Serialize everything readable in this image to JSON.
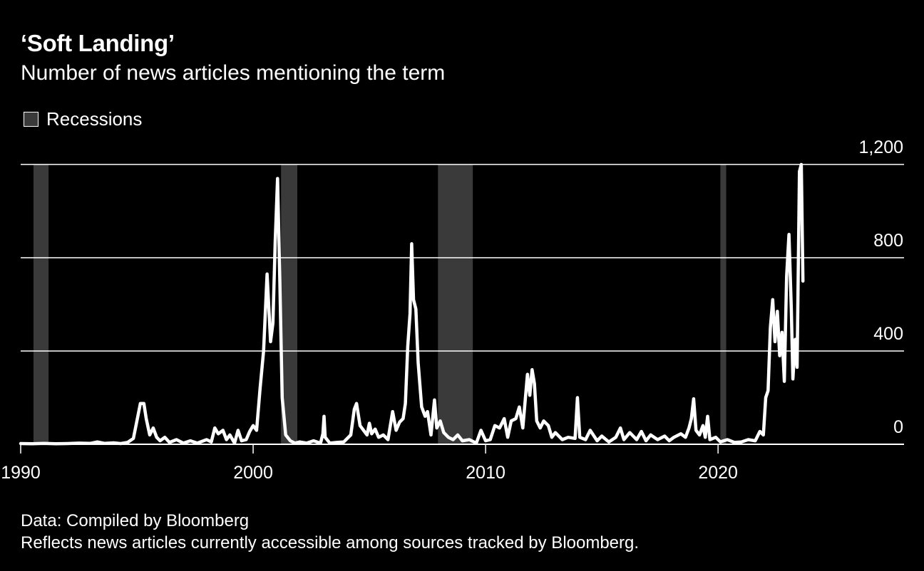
{
  "title": "‘Soft Landing’",
  "subtitle": "Number of news articles mentioning the term",
  "legend": {
    "recessions_label": "Recessions"
  },
  "footer": {
    "source": "Data: Compiled by Bloomberg",
    "note": "Reflects news articles currently accessible among sources tracked by Bloomberg."
  },
  "colors": {
    "background": "#000000",
    "line": "#ffffff",
    "recession": "#3a3a3a",
    "text": "#ffffff"
  },
  "chart_data": {
    "type": "line",
    "title": "‘Soft Landing’",
    "subtitle": "Number of news articles mentioning the term",
    "xlim": [
      1990,
      2028
    ],
    "ylim": [
      0,
      1200
    ],
    "x_ticks": [
      {
        "value": 1990,
        "label": "1990"
      },
      {
        "value": 2000,
        "label": "2000"
      },
      {
        "value": 2010,
        "label": "2010"
      },
      {
        "value": 2020,
        "label": "2020"
      }
    ],
    "y_ticks": [
      {
        "value": 0,
        "label": "0"
      },
      {
        "value": 400,
        "label": "400"
      },
      {
        "value": 800,
        "label": "800"
      },
      {
        "value": 1200,
        "label": "1,200"
      }
    ],
    "grid": true,
    "y_axis_position": "right",
    "legend_position": "top-left",
    "recessions": [
      {
        "start": 1990.55,
        "end": 1991.2
      },
      {
        "start": 2001.2,
        "end": 2001.9
      },
      {
        "start": 2007.95,
        "end": 2009.45
      },
      {
        "start": 2020.1,
        "end": 2020.35
      }
    ],
    "series": [
      {
        "values": [
          [
            1990.0,
            3
          ],
          [
            1990.5,
            2
          ],
          [
            1991.0,
            4
          ],
          [
            1991.5,
            2
          ],
          [
            1992.0,
            3
          ],
          [
            1992.5,
            5
          ],
          [
            1993.0,
            4
          ],
          [
            1993.3,
            10
          ],
          [
            1993.6,
            4
          ],
          [
            1994.0,
            6
          ],
          [
            1994.3,
            3
          ],
          [
            1994.6,
            8
          ],
          [
            1994.85,
            25
          ],
          [
            1995.0,
            100
          ],
          [
            1995.15,
            175
          ],
          [
            1995.3,
            175
          ],
          [
            1995.4,
            110
          ],
          [
            1995.55,
            40
          ],
          [
            1995.7,
            70
          ],
          [
            1995.85,
            30
          ],
          [
            1996.0,
            15
          ],
          [
            1996.2,
            30
          ],
          [
            1996.4,
            8
          ],
          [
            1996.7,
            20
          ],
          [
            1997.0,
            5
          ],
          [
            1997.3,
            15
          ],
          [
            1997.6,
            5
          ],
          [
            1998.0,
            20
          ],
          [
            1998.2,
            10
          ],
          [
            1998.35,
            70
          ],
          [
            1998.5,
            45
          ],
          [
            1998.7,
            60
          ],
          [
            1998.85,
            20
          ],
          [
            1999.0,
            40
          ],
          [
            1999.2,
            5
          ],
          [
            1999.35,
            60
          ],
          [
            1999.5,
            15
          ],
          [
            1999.7,
            20
          ],
          [
            1999.85,
            55
          ],
          [
            2000.0,
            80
          ],
          [
            2000.15,
            60
          ],
          [
            2000.3,
            240
          ],
          [
            2000.45,
            400
          ],
          [
            2000.6,
            730
          ],
          [
            2000.75,
            440
          ],
          [
            2000.85,
            520
          ],
          [
            2000.95,
            870
          ],
          [
            2001.05,
            1140
          ],
          [
            2001.15,
            700
          ],
          [
            2001.25,
            200
          ],
          [
            2001.4,
            40
          ],
          [
            2001.6,
            15
          ],
          [
            2001.8,
            5
          ],
          [
            2002.0,
            10
          ],
          [
            2002.3,
            5
          ],
          [
            2002.6,
            15
          ],
          [
            2002.9,
            5
          ],
          [
            2003.0,
            45
          ],
          [
            2003.05,
            120
          ],
          [
            2003.1,
            30
          ],
          [
            2003.3,
            5
          ],
          [
            2003.6,
            8
          ],
          [
            2003.9,
            10
          ],
          [
            2004.2,
            40
          ],
          [
            2004.35,
            150
          ],
          [
            2004.45,
            175
          ],
          [
            2004.6,
            80
          ],
          [
            2004.75,
            60
          ],
          [
            2004.9,
            40
          ],
          [
            2005.0,
            90
          ],
          [
            2005.1,
            45
          ],
          [
            2005.25,
            65
          ],
          [
            2005.4,
            30
          ],
          [
            2005.6,
            40
          ],
          [
            2005.8,
            20
          ],
          [
            2006.0,
            140
          ],
          [
            2006.15,
            60
          ],
          [
            2006.3,
            95
          ],
          [
            2006.45,
            110
          ],
          [
            2006.55,
            175
          ],
          [
            2006.65,
            420
          ],
          [
            2006.75,
            560
          ],
          [
            2006.82,
            860
          ],
          [
            2006.9,
            620
          ],
          [
            2007.0,
            580
          ],
          [
            2007.1,
            350
          ],
          [
            2007.25,
            160
          ],
          [
            2007.4,
            120
          ],
          [
            2007.5,
            140
          ],
          [
            2007.65,
            40
          ],
          [
            2007.8,
            190
          ],
          [
            2007.9,
            70
          ],
          [
            2008.05,
            100
          ],
          [
            2008.2,
            50
          ],
          [
            2008.4,
            30
          ],
          [
            2008.6,
            20
          ],
          [
            2008.8,
            40
          ],
          [
            2009.0,
            15
          ],
          [
            2009.3,
            20
          ],
          [
            2009.6,
            5
          ],
          [
            2009.8,
            60
          ],
          [
            2010.0,
            15
          ],
          [
            2010.2,
            20
          ],
          [
            2010.4,
            80
          ],
          [
            2010.6,
            70
          ],
          [
            2010.8,
            110
          ],
          [
            2010.95,
            30
          ],
          [
            2011.1,
            100
          ],
          [
            2011.3,
            110
          ],
          [
            2011.45,
            160
          ],
          [
            2011.6,
            70
          ],
          [
            2011.8,
            300
          ],
          [
            2011.9,
            210
          ],
          [
            2012.0,
            320
          ],
          [
            2012.1,
            260
          ],
          [
            2012.2,
            100
          ],
          [
            2012.35,
            70
          ],
          [
            2012.5,
            100
          ],
          [
            2012.7,
            80
          ],
          [
            2012.85,
            30
          ],
          [
            2013.0,
            50
          ],
          [
            2013.3,
            20
          ],
          [
            2013.55,
            30
          ],
          [
            2013.85,
            25
          ],
          [
            2013.95,
            200
          ],
          [
            2014.05,
            30
          ],
          [
            2014.3,
            20
          ],
          [
            2014.5,
            60
          ],
          [
            2014.8,
            15
          ],
          [
            2015.0,
            35
          ],
          [
            2015.3,
            10
          ],
          [
            2015.6,
            30
          ],
          [
            2015.8,
            70
          ],
          [
            2015.95,
            20
          ],
          [
            2016.2,
            50
          ],
          [
            2016.5,
            20
          ],
          [
            2016.7,
            55
          ],
          [
            2016.9,
            15
          ],
          [
            2017.1,
            40
          ],
          [
            2017.4,
            20
          ],
          [
            2017.7,
            35
          ],
          [
            2017.9,
            15
          ],
          [
            2018.1,
            30
          ],
          [
            2018.4,
            45
          ],
          [
            2018.6,
            30
          ],
          [
            2018.75,
            70
          ],
          [
            2018.85,
            110
          ],
          [
            2018.95,
            195
          ],
          [
            2019.05,
            60
          ],
          [
            2019.2,
            40
          ],
          [
            2019.35,
            80
          ],
          [
            2019.45,
            30
          ],
          [
            2019.55,
            120
          ],
          [
            2019.65,
            20
          ],
          [
            2019.9,
            30
          ],
          [
            2020.1,
            10
          ],
          [
            2020.4,
            20
          ],
          [
            2020.7,
            8
          ],
          [
            2021.0,
            10
          ],
          [
            2021.3,
            20
          ],
          [
            2021.6,
            15
          ],
          [
            2021.8,
            55
          ],
          [
            2021.95,
            40
          ],
          [
            2022.05,
            200
          ],
          [
            2022.15,
            230
          ],
          [
            2022.25,
            500
          ],
          [
            2022.35,
            620
          ],
          [
            2022.45,
            440
          ],
          [
            2022.55,
            570
          ],
          [
            2022.65,
            380
          ],
          [
            2022.75,
            480
          ],
          [
            2022.85,
            270
          ],
          [
            2022.95,
            720
          ],
          [
            2023.05,
            900
          ],
          [
            2023.15,
            580
          ],
          [
            2023.22,
            280
          ],
          [
            2023.32,
            450
          ],
          [
            2023.4,
            330
          ],
          [
            2023.5,
            1170
          ],
          [
            2023.58,
            1200
          ],
          [
            2023.65,
            700
          ]
        ]
      }
    ]
  }
}
